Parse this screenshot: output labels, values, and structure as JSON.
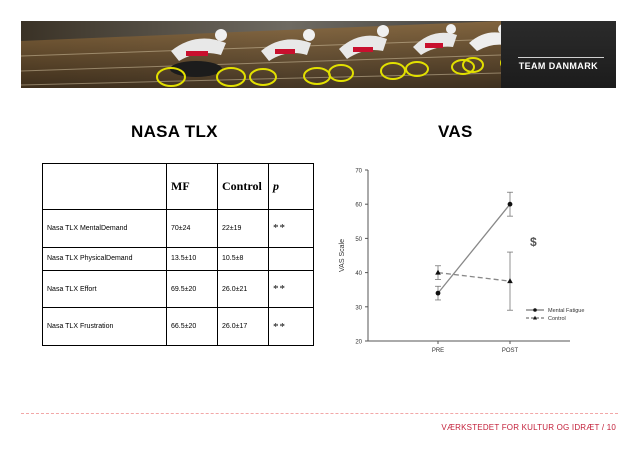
{
  "banner": {
    "logo_text": "TEAM DANMARK"
  },
  "sections": {
    "left_title": "NASA TLX",
    "right_title": "VAS"
  },
  "table": {
    "headers": [
      "",
      "MF",
      "Control",
      "p"
    ],
    "rows": [
      {
        "label": "Nasa TLX MentalDemand",
        "mf": "70±24",
        "control": "22±19",
        "p": "**"
      },
      {
        "label": "Nasa TLX PhysicalDemand",
        "mf": "13.5±10",
        "control": "10.5±8",
        "p": ""
      },
      {
        "label": "Nasa TLX Effort",
        "mf": "69.5±20",
        "control": "26.0±21",
        "p": "**"
      },
      {
        "label": "Nasa TLX Frustration",
        "mf": "66.5±20",
        "control": "26.0±17",
        "p": "**"
      }
    ]
  },
  "chart_data": {
    "type": "line",
    "ylabel": "VAS Scale",
    "xlabel": "",
    "categories": [
      "PRE",
      "POST"
    ],
    "ylim": [
      20,
      70
    ],
    "yticks": [
      "20",
      "30",
      "40",
      "50",
      "60",
      "70"
    ],
    "series": [
      {
        "name": "Mental Fatigue",
        "values": [
          34,
          60
        ],
        "errors": [
          2,
          3.5
        ],
        "marker": "circle",
        "style": "solid",
        "color": "#888888"
      },
      {
        "name": "Control",
        "values": [
          40,
          37.5
        ],
        "errors": [
          2,
          8.5
        ],
        "marker": "triangle",
        "style": "dashed",
        "color": "#888888"
      }
    ],
    "annotation": "$",
    "legend_position": "bottom-right"
  },
  "footer": {
    "text": "VÆRKSTEDET FOR KULTUR OG IDRÆT / 10"
  }
}
